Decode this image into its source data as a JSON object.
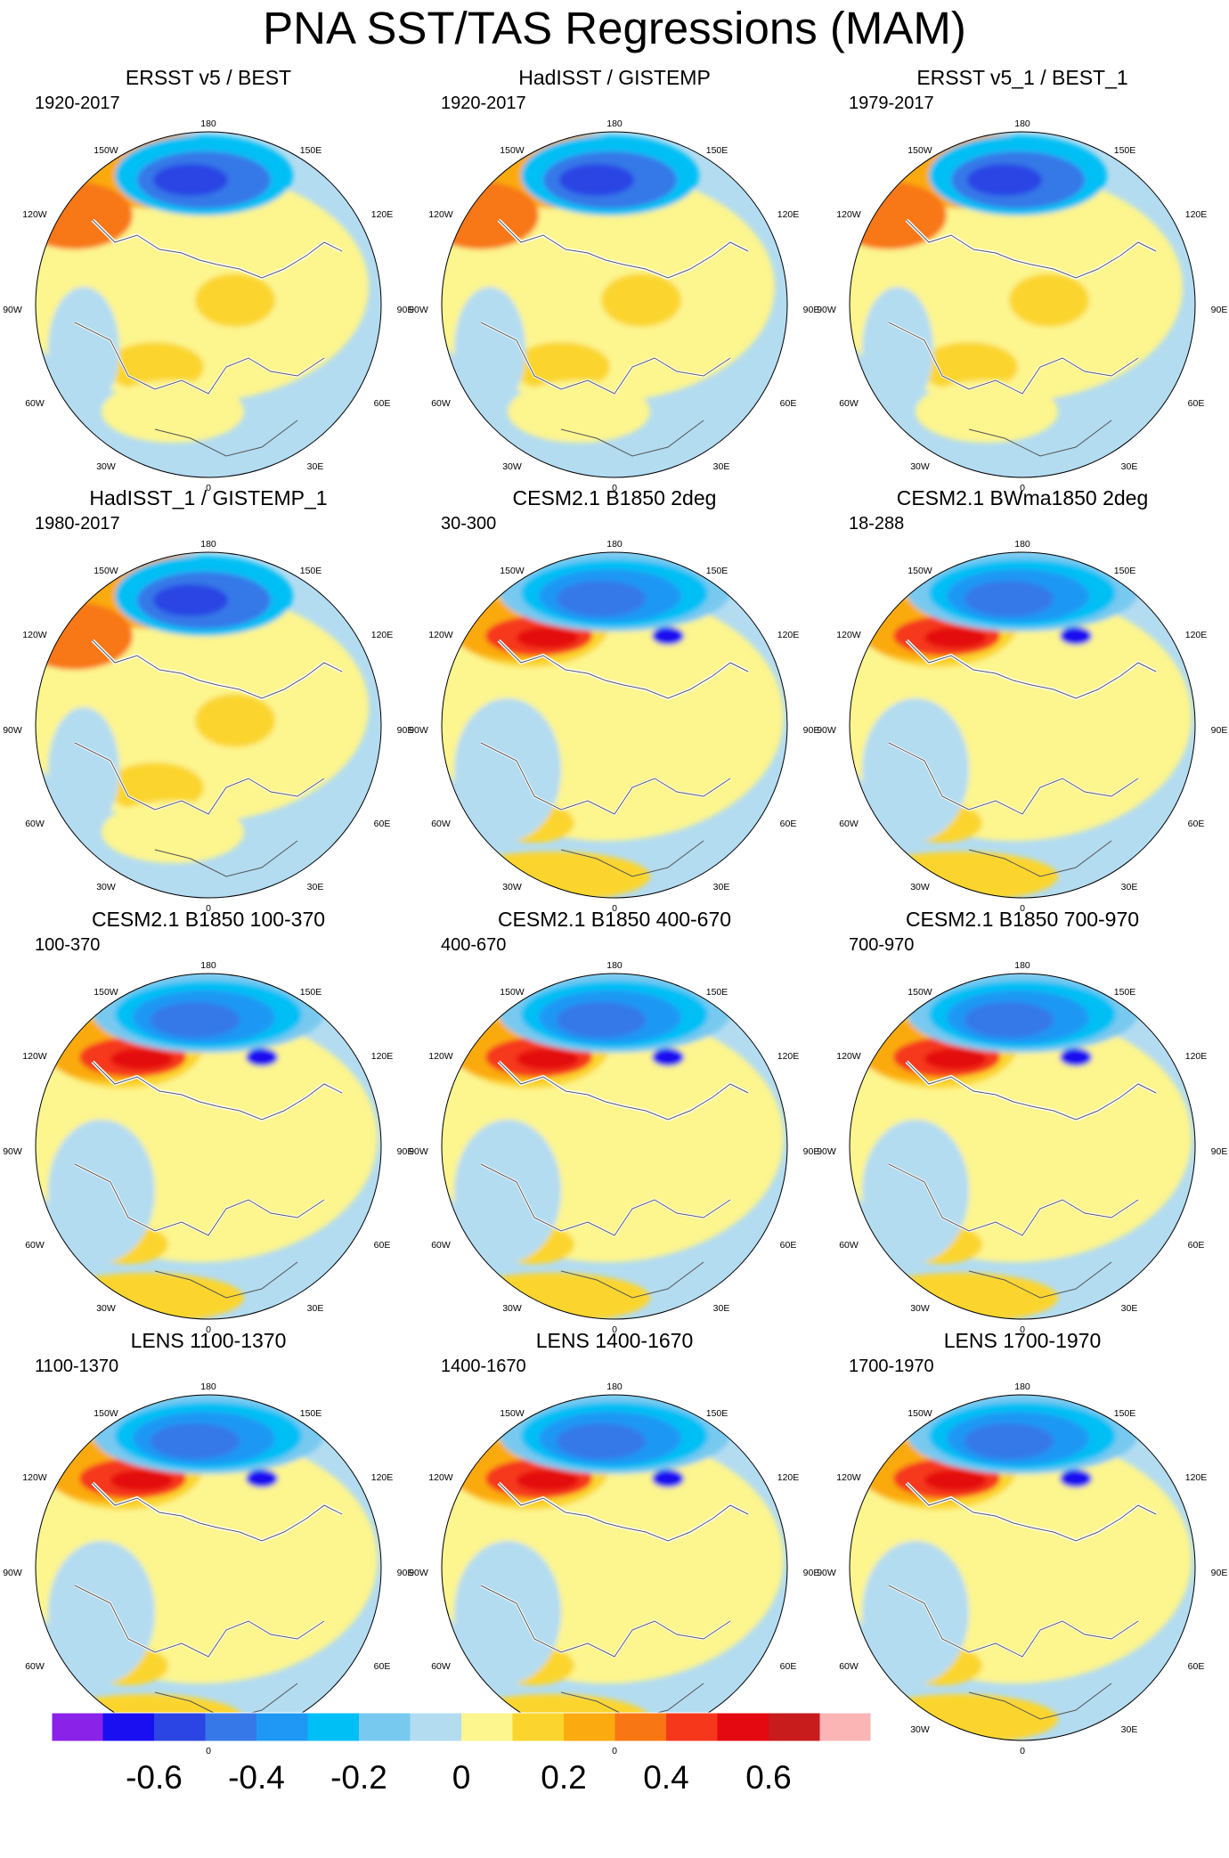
{
  "title": "PNA SST/TAS Regressions (MAM)",
  "lon_labels": [
    "180",
    "150E",
    "120E",
    "90E",
    "60E",
    "30E",
    "0",
    "30W",
    "60W",
    "90W",
    "120W",
    "150W"
  ],
  "panels": [
    {
      "title": "ERSST v5 / BEST",
      "range": "1920-2017",
      "type": "obs"
    },
    {
      "title": "HadISST / GISTEMP",
      "range": "1920-2017",
      "type": "obs"
    },
    {
      "title": "ERSST v5_1 / BEST_1",
      "range": "1979-2017",
      "type": "obs"
    },
    {
      "title": "HadISST_1 / GISTEMP_1",
      "range": "1980-2017",
      "type": "obs"
    },
    {
      "title": "CESM2.1 B1850 2deg",
      "range": "30-300",
      "type": "model"
    },
    {
      "title": "CESM2.1 BWma1850 2deg",
      "range": "18-288",
      "type": "model"
    },
    {
      "title": "CESM2.1 B1850 100-370",
      "range": "100-370",
      "type": "model"
    },
    {
      "title": "CESM2.1 B1850 400-670",
      "range": "400-670",
      "type": "model"
    },
    {
      "title": "CESM2.1 B1850 700-970",
      "range": "700-970",
      "type": "model"
    },
    {
      "title": "LENS 1100-1370",
      "range": "1100-1370",
      "type": "model"
    },
    {
      "title": "LENS 1400-1670",
      "range": "1400-1670",
      "type": "model"
    },
    {
      "title": "LENS 1700-1970",
      "range": "1700-1970",
      "type": "model"
    }
  ],
  "colorbar": {
    "colors": [
      "#8a22e8",
      "#1a0ff0",
      "#2a45e4",
      "#3678e8",
      "#1e98f4",
      "#00bff5",
      "#78c9f0",
      "#b3dcf1",
      "#fdf58e",
      "#fbd52e",
      "#fbaa10",
      "#f87714",
      "#f6371c",
      "#e40810",
      "#c81b1c",
      "#fbb5b5"
    ],
    "labels": [
      "-0.6",
      "-0.4",
      "-0.2",
      "0",
      "0.2",
      "0.4",
      "0.6"
    ]
  }
}
